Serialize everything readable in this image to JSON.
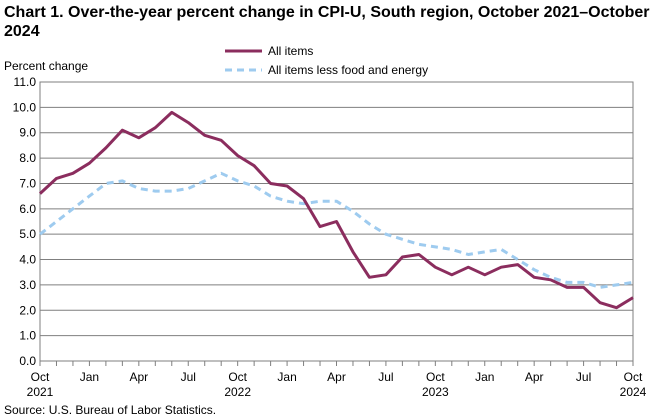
{
  "chart_data": {
    "type": "line",
    "title": "Chart 1. Over-the-year percent change in CPI-U, South region, October 2021–October 2024",
    "ylabel": "Percent change",
    "xlabel": "",
    "ylim": [
      0,
      11
    ],
    "y_ticks": [
      "0.0",
      "1.0",
      "2.0",
      "3.0",
      "4.0",
      "5.0",
      "6.0",
      "7.0",
      "8.0",
      "9.0",
      "10.0",
      "11.0"
    ],
    "x": [
      "2021-10",
      "2021-11",
      "2021-12",
      "2022-01",
      "2022-02",
      "2022-03",
      "2022-04",
      "2022-05",
      "2022-06",
      "2022-07",
      "2022-08",
      "2022-09",
      "2022-10",
      "2022-11",
      "2022-12",
      "2023-01",
      "2023-02",
      "2023-03",
      "2023-04",
      "2023-05",
      "2023-06",
      "2023-07",
      "2023-08",
      "2023-09",
      "2023-10",
      "2023-11",
      "2023-12",
      "2024-01",
      "2024-02",
      "2024-03",
      "2024-04",
      "2024-05",
      "2024-06",
      "2024-07",
      "2024-08",
      "2024-09",
      "2024-10"
    ],
    "x_ticks": [
      {
        "label": "Oct",
        "year": "2021"
      },
      {
        "label": "Jan",
        "year": ""
      },
      {
        "label": "Apr",
        "year": ""
      },
      {
        "label": "Jul",
        "year": ""
      },
      {
        "label": "Oct",
        "year": "2022"
      },
      {
        "label": "Jan",
        "year": ""
      },
      {
        "label": "Apr",
        "year": ""
      },
      {
        "label": "Jul",
        "year": ""
      },
      {
        "label": "Oct",
        "year": "2023"
      },
      {
        "label": "Jan",
        "year": ""
      },
      {
        "label": "Apr",
        "year": ""
      },
      {
        "label": "Jul",
        "year": ""
      },
      {
        "label": "Oct",
        "year": "2024"
      }
    ],
    "series": [
      {
        "name": "All items",
        "color": "#8b2d5e",
        "style": "solid",
        "values": [
          6.6,
          7.2,
          7.4,
          7.8,
          8.4,
          9.1,
          8.8,
          9.2,
          9.8,
          9.4,
          8.9,
          8.7,
          8.1,
          7.7,
          7.0,
          6.9,
          6.4,
          5.3,
          5.5,
          4.3,
          3.3,
          3.4,
          4.1,
          4.2,
          3.7,
          3.4,
          3.7,
          3.4,
          3.7,
          3.8,
          3.3,
          3.2,
          2.9,
          2.9,
          2.3,
          2.1,
          2.5
        ]
      },
      {
        "name": "All items less food and energy",
        "color": "#9ecbef",
        "style": "dashed",
        "values": [
          5.0,
          5.5,
          6.0,
          6.5,
          7.0,
          7.1,
          6.8,
          6.7,
          6.7,
          6.8,
          7.1,
          7.4,
          7.1,
          6.9,
          6.5,
          6.3,
          6.2,
          6.3,
          6.3,
          5.9,
          5.4,
          5.0,
          4.8,
          4.6,
          4.5,
          4.4,
          4.2,
          4.3,
          4.4,
          4.0,
          3.6,
          3.3,
          3.1,
          3.1,
          2.9,
          3.0,
          3.1
        ]
      }
    ],
    "grid": true,
    "legend_position": "top-center"
  },
  "source": "Source: U.S. Bureau of Labor Statistics."
}
